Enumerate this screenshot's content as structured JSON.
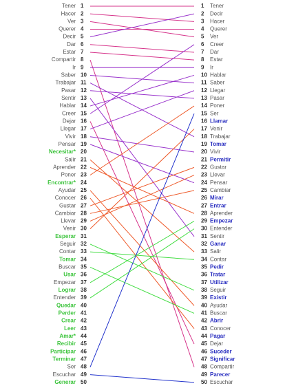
{
  "chart_data": {
    "type": "slope",
    "left_highlight_color": "#3cc43c",
    "right_highlight_color": "#2a2fc0",
    "text_color": "#555555",
    "left": [
      {
        "rank": 1,
        "label": "Tener",
        "color": "#d6338a"
      },
      {
        "rank": 2,
        "label": "Hacer",
        "color": "#d6338a"
      },
      {
        "rank": 3,
        "label": "Ver",
        "color": "#d6338a"
      },
      {
        "rank": 4,
        "label": "Querer",
        "color": "#d6338a"
      },
      {
        "rank": 5,
        "label": "Decir",
        "color": "#9933cc"
      },
      {
        "rank": 6,
        "label": "Dar",
        "color": "#d6338a"
      },
      {
        "rank": 7,
        "label": "Estar",
        "color": "#d6338a"
      },
      {
        "rank": 8,
        "label": "Compartir",
        "color": "#d6338a"
      },
      {
        "rank": 9,
        "label": "Ir",
        "color": "#9933cc"
      },
      {
        "rank": 10,
        "label": "Saber",
        "color": "#9933cc"
      },
      {
        "rank": 11,
        "label": "Trabajar",
        "color": "#9933cc"
      },
      {
        "rank": 12,
        "label": "Pasar",
        "color": "#9933cc"
      },
      {
        "rank": 13,
        "label": "Sentir",
        "color": "#9933cc"
      },
      {
        "rank": 14,
        "label": "Hablar",
        "color": "#9933cc"
      },
      {
        "rank": 15,
        "label": "Creer",
        "color": "#9933cc"
      },
      {
        "rank": 16,
        "label": "Dejar",
        "color": "#d6338a"
      },
      {
        "rank": 17,
        "label": "Llegar",
        "color": "#9933cc"
      },
      {
        "rank": 18,
        "label": "Vivir",
        "color": "#9933cc"
      },
      {
        "rank": 19,
        "label": "Pensar",
        "color": "#9933cc"
      },
      {
        "rank": 20,
        "label": "Necesitar*",
        "highlight": true
      },
      {
        "rank": 21,
        "label": "Salir",
        "color": "#ee5a2a"
      },
      {
        "rank": 22,
        "label": "Aprender",
        "color": "#ee5a2a"
      },
      {
        "rank": 23,
        "label": "Poner",
        "color": "#ee5a2a"
      },
      {
        "rank": 24,
        "label": "Encontrar*",
        "highlight": true
      },
      {
        "rank": 25,
        "label": "Ayudar",
        "color": "#ee5a2a"
      },
      {
        "rank": 26,
        "label": "Conocer",
        "color": "#ee5a2a"
      },
      {
        "rank": 27,
        "label": "Gustar",
        "color": "#ee5a2a"
      },
      {
        "rank": 28,
        "label": "Cambiar",
        "color": "#ee5a2a"
      },
      {
        "rank": 29,
        "label": "Llevar",
        "color": "#ee5a2a"
      },
      {
        "rank": 30,
        "label": "Venir",
        "color": "#ee5a2a"
      },
      {
        "rank": 31,
        "label": "Esperar",
        "highlight": true
      },
      {
        "rank": 32,
        "label": "Seguir",
        "color": "#44dd44"
      },
      {
        "rank": 33,
        "label": "Contar",
        "color": "#44dd44"
      },
      {
        "rank": 34,
        "label": "Tomar",
        "highlight": true
      },
      {
        "rank": 35,
        "label": "Buscar",
        "color": "#44dd44"
      },
      {
        "rank": 36,
        "label": "Usar",
        "highlight": true
      },
      {
        "rank": 37,
        "label": "Empezar",
        "color": "#44dd44"
      },
      {
        "rank": 38,
        "label": "Lograr",
        "highlight": true
      },
      {
        "rank": 39,
        "label": "Entender",
        "color": "#44dd44"
      },
      {
        "rank": 40,
        "label": "Quedar",
        "highlight": true
      },
      {
        "rank": 41,
        "label": "Perder",
        "highlight": true
      },
      {
        "rank": 42,
        "label": "Crear",
        "highlight": true
      },
      {
        "rank": 43,
        "label": "Leer",
        "highlight": true
      },
      {
        "rank": 44,
        "label": "Amar*",
        "highlight": true
      },
      {
        "rank": 45,
        "label": "Recibir",
        "highlight": true
      },
      {
        "rank": 46,
        "label": "Participar",
        "highlight": true
      },
      {
        "rank": 47,
        "label": "Terminar",
        "highlight": true
      },
      {
        "rank": 48,
        "label": "Ser",
        "color": "#2233cc"
      },
      {
        "rank": 49,
        "label": "Escuchar",
        "color": "#2233cc"
      },
      {
        "rank": 50,
        "label": "Generar",
        "highlight": true
      }
    ],
    "right": [
      {
        "rank": 1,
        "label": "Tener"
      },
      {
        "rank": 2,
        "label": "Decir"
      },
      {
        "rank": 3,
        "label": "Hacer"
      },
      {
        "rank": 4,
        "label": "Querer"
      },
      {
        "rank": 5,
        "label": "Ver"
      },
      {
        "rank": 6,
        "label": "Creer"
      },
      {
        "rank": 7,
        "label": "Dar"
      },
      {
        "rank": 8,
        "label": "Estar"
      },
      {
        "rank": 9,
        "label": "Ir"
      },
      {
        "rank": 10,
        "label": "Hablar"
      },
      {
        "rank": 11,
        "label": "Saber"
      },
      {
        "rank": 12,
        "label": "Llegar"
      },
      {
        "rank": 13,
        "label": "Pasar"
      },
      {
        "rank": 14,
        "label": "Poner"
      },
      {
        "rank": 15,
        "label": "Ser"
      },
      {
        "rank": 16,
        "label": "Llamar",
        "highlight": true
      },
      {
        "rank": 17,
        "label": "Venir"
      },
      {
        "rank": 18,
        "label": "Trabajar"
      },
      {
        "rank": 19,
        "label": "Tomar",
        "highlight": true
      },
      {
        "rank": 20,
        "label": "Vivir"
      },
      {
        "rank": 21,
        "label": "Permitir",
        "highlight": true
      },
      {
        "rank": 22,
        "label": "Gustar"
      },
      {
        "rank": 23,
        "label": "Llevar"
      },
      {
        "rank": 24,
        "label": "Pensar"
      },
      {
        "rank": 25,
        "label": "Cambiar"
      },
      {
        "rank": 26,
        "label": "Mirar",
        "highlight": true
      },
      {
        "rank": 27,
        "label": "Entrar",
        "highlight": true
      },
      {
        "rank": 28,
        "label": "Aprender"
      },
      {
        "rank": 29,
        "label": "Empezar",
        "highlight": true
      },
      {
        "rank": 30,
        "label": "Entender"
      },
      {
        "rank": 31,
        "label": "Sentir"
      },
      {
        "rank": 32,
        "label": "Ganar",
        "highlight": true
      },
      {
        "rank": 33,
        "label": "Salir"
      },
      {
        "rank": 34,
        "label": "Contar"
      },
      {
        "rank": 35,
        "label": "Pedir",
        "highlight": true
      },
      {
        "rank": 36,
        "label": "Tratar",
        "highlight": true
      },
      {
        "rank": 37,
        "label": "Utilizar",
        "highlight": true
      },
      {
        "rank": 38,
        "label": "Seguir"
      },
      {
        "rank": 39,
        "label": "Existir",
        "highlight": true
      },
      {
        "rank": 40,
        "label": "Ayudar"
      },
      {
        "rank": 41,
        "label": "Buscar"
      },
      {
        "rank": 42,
        "label": "Abrir",
        "highlight": true
      },
      {
        "rank": 43,
        "label": "Conocer"
      },
      {
        "rank": 44,
        "label": "Pagar",
        "highlight": true
      },
      {
        "rank": 45,
        "label": "Dejar"
      },
      {
        "rank": 46,
        "label": "Suceder",
        "highlight": true
      },
      {
        "rank": 47,
        "label": "Significar",
        "highlight": true
      },
      {
        "rank": 48,
        "label": "Compartir"
      },
      {
        "rank": 49,
        "label": "Parecer",
        "highlight": true
      },
      {
        "rank": 50,
        "label": "Escuchar"
      }
    ]
  }
}
